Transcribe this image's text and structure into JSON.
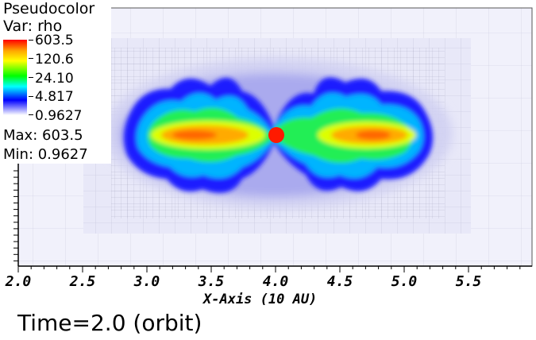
{
  "legend": {
    "title": "Pseudocolor",
    "variable": "Var: rho",
    "colorbar_labels": [
      "603.5",
      "120.6",
      "24.10",
      "4.817",
      "0.9627"
    ],
    "max_label": "Max:  603.5",
    "min_label": "Min:  0.9627"
  },
  "x_axis": {
    "title": "X-Axis (10 AU)",
    "ticks": [
      "2.0",
      "2.5",
      "3.0",
      "3.5",
      "4.0",
      "4.5",
      "5.0",
      "5.5"
    ]
  },
  "time_label": "Time=2.0 (orbit)",
  "colors": {
    "max": "#ff0000",
    "high": "#ffaa00",
    "mid": "#00ff00",
    "low": "#0000ff",
    "min": "#ffffff"
  }
}
